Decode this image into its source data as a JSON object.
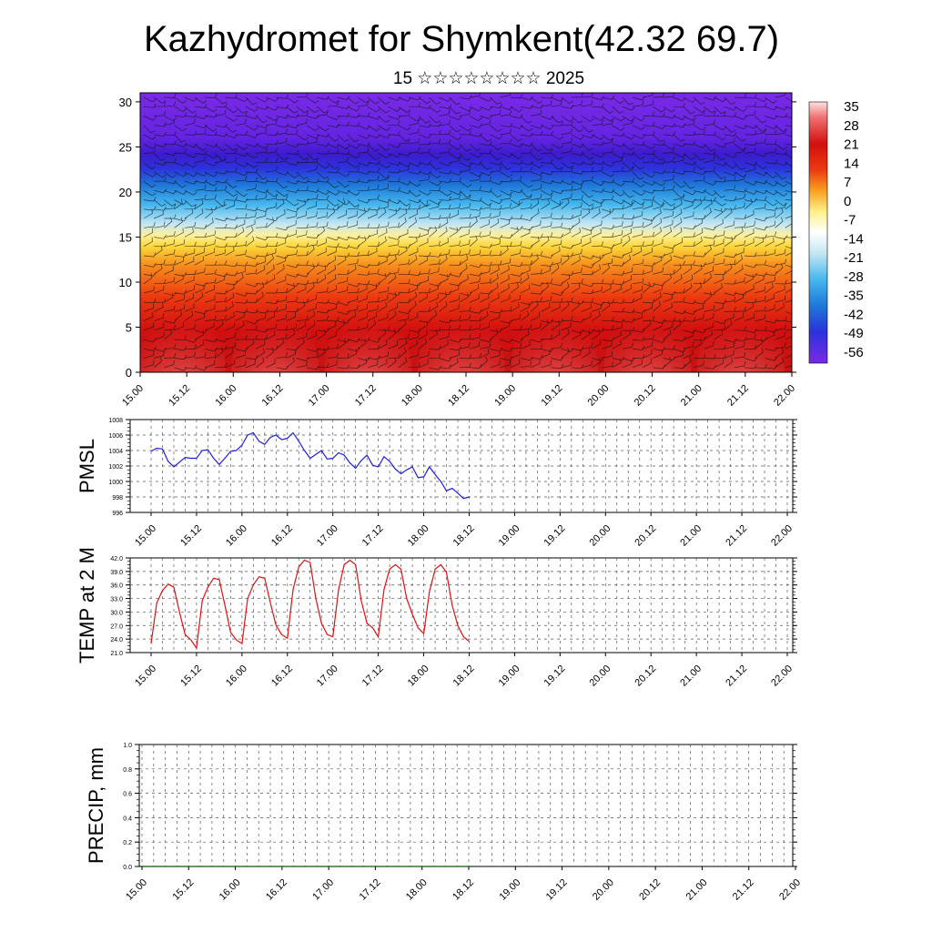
{
  "title": "Kazhydromet for Shymkent(42.32 69.7)",
  "subtitle": "15 ☆☆☆☆☆☆☆☆ 2025",
  "colors": {
    "pmsl_line": "#1f1fd8",
    "temp_line": "#e01010",
    "precip_line": "#006400"
  },
  "chart_data": [
    {
      "type": "heatmap",
      "name": "cross-section",
      "y_ticks": [
        "0",
        "5",
        "10",
        "15",
        "20",
        "25",
        "30"
      ],
      "ylim": [
        0,
        31
      ],
      "x_ticks": [
        "15.00",
        "15.12",
        "16.00",
        "16.12",
        "17.00",
        "17.12",
        "18.00",
        "18.12",
        "19.00",
        "19.12",
        "20.00",
        "20.12",
        "21.00",
        "21.12",
        "22.00"
      ],
      "colorbar_labels": [
        "35",
        "28",
        "21",
        "14",
        "7",
        "0",
        "-7",
        "-14",
        "-21",
        "-28",
        "-35",
        "-42",
        "-49",
        "-56"
      ],
      "overlay": "wind barbs"
    },
    {
      "type": "line",
      "name": "pmsl",
      "ylabel": "PMSL",
      "ylim": [
        996,
        1008
      ],
      "y_ticks": [
        "1008",
        "1006",
        "1004",
        "1002",
        "1000",
        "998",
        "996"
      ],
      "x_ticks": [
        "15.00",
        "15.12",
        "16.00",
        "16.12",
        "17.00",
        "17.12",
        "18.00",
        "18.12",
        "19.00",
        "19.12",
        "20.00",
        "20.12",
        "21.00",
        "21.12",
        "22.00"
      ],
      "values": [
        1003.9,
        1004.3,
        1004.2,
        1002.6,
        1001.9,
        1002.5,
        1003.1,
        1003.0,
        1003.0,
        1004.0,
        1004.1,
        1003.0,
        1002.2,
        1003.0,
        1003.9,
        1004.0,
        1004.7,
        1006.0,
        1006.3,
        1005.2,
        1004.8,
        1005.7,
        1006.0,
        1005.4,
        1005.6,
        1006.3,
        1005.2,
        1004.0,
        1003.0,
        1003.5,
        1004.0,
        1002.9,
        1003.0,
        1003.7,
        1003.4,
        1002.4,
        1001.7,
        1002.7,
        1003.4,
        1002.1,
        1001.9,
        1003.2,
        1002.6,
        1001.6,
        1001.0,
        1001.5,
        1001.9,
        1000.5,
        1000.6,
        1001.9,
        1000.9,
        1000.0,
        998.8,
        999.1,
        998.5,
        997.8,
        998.0
      ]
    },
    {
      "type": "line",
      "name": "temp",
      "ylabel": "TEMP at 2 M",
      "ylim": [
        21,
        42
      ],
      "y_ticks": [
        "42.0",
        "39.0",
        "36.0",
        "33.0",
        "30.0",
        "27.0",
        "24.0",
        "21.0"
      ],
      "x_ticks": [
        "15.00",
        "15.12",
        "16.00",
        "16.12",
        "17.00",
        "17.12",
        "18.00",
        "18.12",
        "19.00",
        "19.12",
        "20.00",
        "20.12",
        "21.00",
        "21.12",
        "22.00"
      ],
      "values": [
        23.0,
        32.0,
        34.8,
        36.2,
        35.5,
        30.0,
        25.0,
        23.8,
        22.0,
        32.5,
        35.5,
        37.5,
        37.2,
        31.5,
        25.5,
        23.8,
        23.0,
        33.0,
        36.0,
        37.8,
        37.5,
        32.0,
        27.0,
        25.0,
        24.2,
        35.0,
        40.0,
        41.5,
        41.0,
        33.0,
        27.5,
        25.0,
        24.5,
        35.0,
        40.5,
        41.5,
        40.5,
        32.5,
        27.5,
        26.5,
        24.5,
        35.0,
        39.5,
        40.5,
        39.5,
        33.0,
        29.5,
        26.5,
        25.2,
        34.5,
        39.5,
        40.5,
        38.8,
        31.5,
        27.0,
        24.5,
        23.5
      ]
    },
    {
      "type": "line",
      "name": "precip",
      "ylabel": "PRECIP, mm",
      "ylim": [
        0,
        1
      ],
      "y_ticks": [
        "1.0",
        "0.8",
        "0.6",
        "0.4",
        "0.2",
        "0.0"
      ],
      "x_ticks": [
        "15.00",
        "15.12",
        "16.00",
        "16.12",
        "17.00",
        "17.12",
        "18.00",
        "18.12",
        "19.00",
        "19.12",
        "20.00",
        "20.12",
        "21.00",
        "21.12",
        "22.00"
      ],
      "values": [
        0,
        0,
        0,
        0,
        0,
        0,
        0,
        0,
        0,
        0,
        0,
        0,
        0,
        0,
        0,
        0,
        0,
        0,
        0,
        0,
        0,
        0,
        0,
        0,
        0,
        0,
        0,
        0,
        0,
        0,
        0,
        0,
        0,
        0,
        0,
        0,
        0,
        0,
        0,
        0,
        0,
        0,
        0,
        0,
        0,
        0,
        0,
        0,
        0,
        0,
        0,
        0,
        0,
        0,
        0,
        0,
        0
      ]
    }
  ]
}
